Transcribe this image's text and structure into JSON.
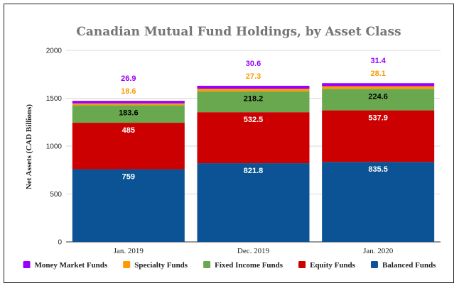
{
  "chart_data": {
    "type": "bar",
    "stacked": true,
    "title": "Canadian Mutual Fund Holdings, by Asset Class",
    "ylabel": "Net Assets (CAD Billions)",
    "xlabel": "",
    "ylim": [
      0,
      2000
    ],
    "yticks": [
      0,
      500,
      1000,
      1500,
      2000
    ],
    "grid": true,
    "legend_position": "bottom",
    "categories": [
      "Jan. 2019",
      "Dec. 2019",
      "Jan. 2020"
    ],
    "series": [
      {
        "name": "Balanced Funds",
        "color": "#0b5394",
        "label_color": "#ffffff",
        "values": [
          759,
          821.8,
          835.5
        ]
      },
      {
        "name": "Equity Funds",
        "color": "#cc0000",
        "label_color": "#ffffff",
        "values": [
          485,
          532.5,
          537.9
        ]
      },
      {
        "name": "Fixed Income Funds",
        "color": "#6aa84f",
        "label_color": "#000000",
        "values": [
          183.6,
          218.2,
          224.6
        ]
      },
      {
        "name": "Specialty Funds",
        "color": "#ff9900",
        "label_color": "#ff9900",
        "values": [
          18.6,
          27.3,
          28.1
        ]
      },
      {
        "name": "Money Market Funds",
        "color": "#9900ff",
        "label_color": "#9900ff",
        "values": [
          26.9,
          30.6,
          31.4
        ]
      }
    ],
    "legend_order": [
      "Money Market Funds",
      "Specialty Funds",
      "Fixed Income Funds",
      "Equity Funds",
      "Balanced Funds"
    ]
  }
}
